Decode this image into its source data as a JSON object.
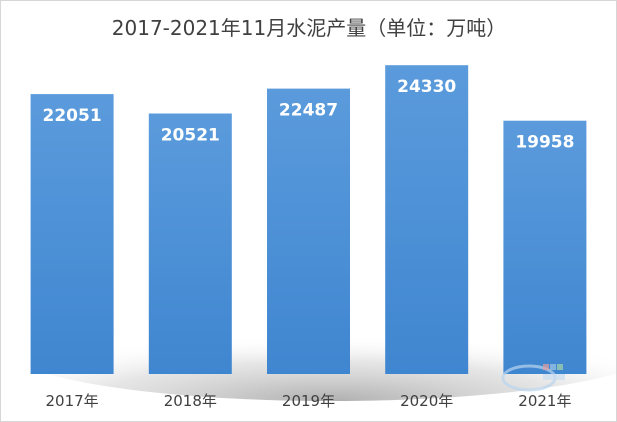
{
  "chart_data": {
    "type": "bar",
    "title": "2017-2021年11月水泥产量（单位：万吨）",
    "categories": [
      "2017年",
      "2018年",
      "2019年",
      "2020年",
      "2021年"
    ],
    "values": [
      22051,
      20521,
      22487,
      24330,
      19958
    ],
    "data_labels": [
      "22051",
      "20521",
      "22487",
      "24330",
      "19958"
    ],
    "ylim": [
      0,
      26000
    ],
    "grid": false,
    "bar_color": "#4a8fd6",
    "bar_color_light": "#5d9de0"
  }
}
